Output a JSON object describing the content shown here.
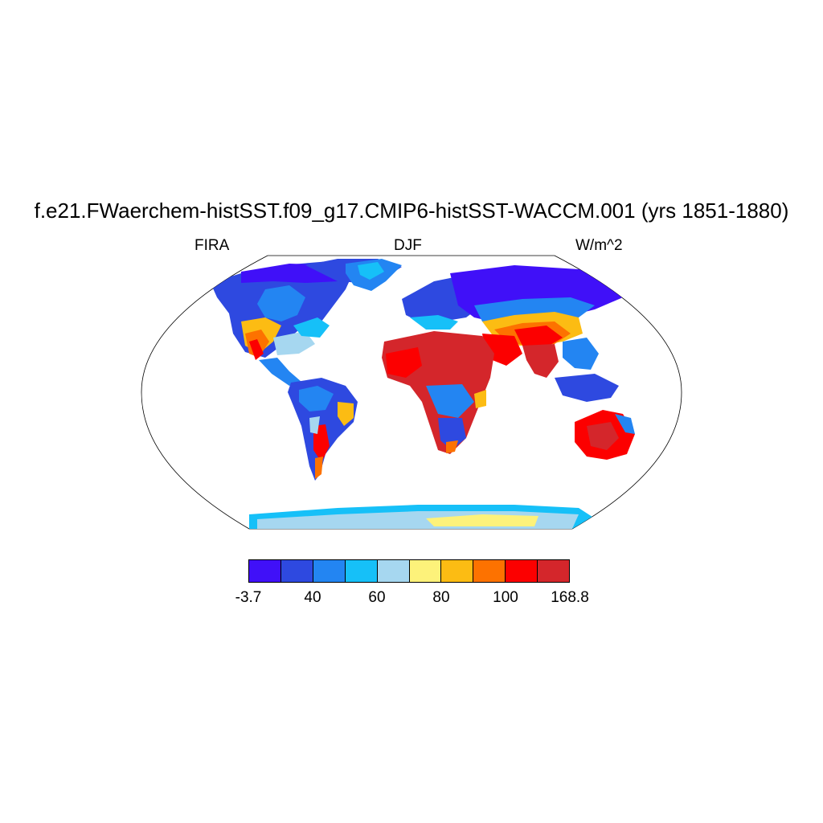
{
  "title": "f.e21.FWaerchem-histSST.f09_g17.CMIP6-histSST-WACCM.001 (yrs 1851-1880)",
  "left_label": "FIRA",
  "center_label": "DJF",
  "right_label": "W/m^2",
  "map": {
    "projection": "Robinson",
    "variable": "FIRA",
    "season": "DJF",
    "units": "W/m^2",
    "ocean_masked": true
  },
  "colorbar": {
    "colors": [
      "#4010f8",
      "#2e49e0",
      "#2385f2",
      "#16c0f8",
      "#a6d7f0",
      "#fdf27a",
      "#fcbc13",
      "#fd7200",
      "#fc0000",
      "#d4262b"
    ],
    "labels": [
      {
        "text": "-3.7",
        "boundary": 0
      },
      {
        "text": "40",
        "boundary": 2
      },
      {
        "text": "60",
        "boundary": 4
      },
      {
        "text": "80",
        "boundary": 6
      },
      {
        "text": "100",
        "boundary": 8
      },
      {
        "text": "168.8",
        "boundary": 10
      }
    ]
  }
}
